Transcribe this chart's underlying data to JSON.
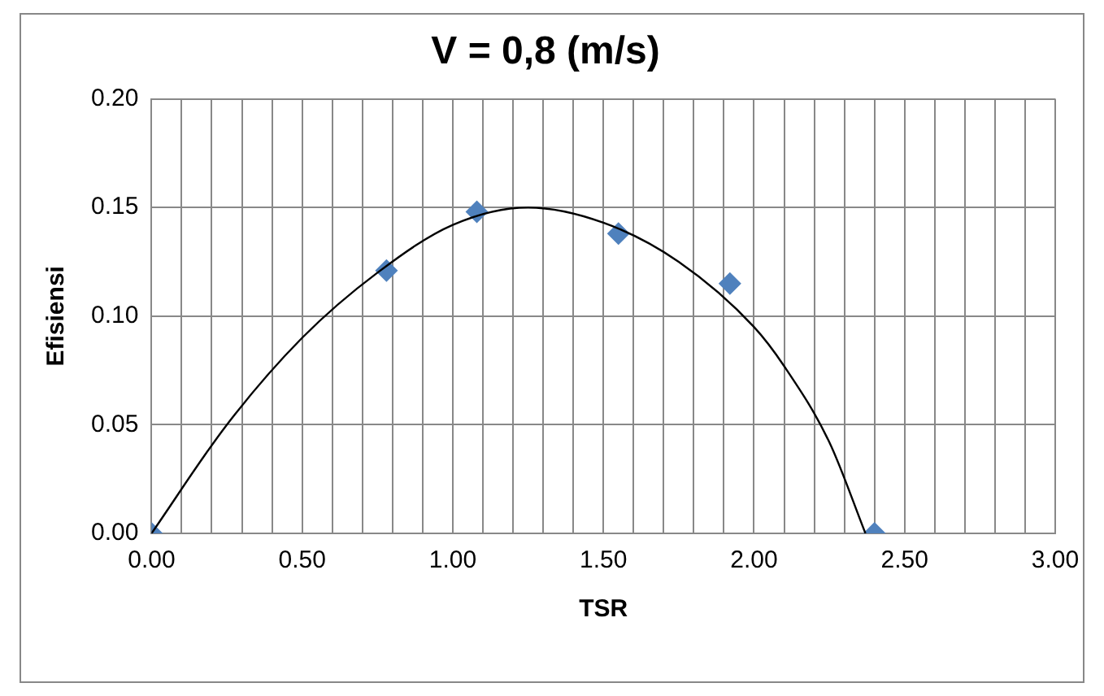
{
  "chart_data": {
    "type": "scatter",
    "title": "V = 0,8 (m/s)",
    "xlabel": "TSR",
    "ylabel": "Efisiensi",
    "series": [
      {
        "color": "#4f81bd",
        "marker": "diamond",
        "x": [
          0,
          0.78,
          1.08,
          1.55,
          1.92,
          2.4
        ],
        "values": [
          0,
          0.121,
          0.148,
          0.138,
          0.115,
          0
        ]
      },
      {
        "type": "line",
        "color": "#000000",
        "marker": "none",
        "x": [
          0,
          0.25,
          0.5,
          0.75,
          1.0,
          1.25,
          1.5,
          1.75,
          2.0,
          2.1,
          2.25,
          2.37
        ],
        "values": [
          0,
          0.05,
          0.09,
          0.12,
          0.142,
          0.15,
          0.143,
          0.125,
          0.095,
          0.077,
          0.042,
          0
        ]
      }
    ],
    "xlim": [
      0,
      3
    ],
    "ylim": [
      0,
      0.2
    ],
    "xticks": [
      {
        "value": 0,
        "label": "0.00"
      },
      {
        "value": 0.1,
        "label": null
      },
      {
        "value": 0.2,
        "label": null
      },
      {
        "value": 0.3,
        "label": null
      },
      {
        "value": 0.4,
        "label": null
      },
      {
        "value": 0.5,
        "label": "0.50"
      },
      {
        "value": 0.6,
        "label": null
      },
      {
        "value": 0.7,
        "label": null
      },
      {
        "value": 0.8,
        "label": null
      },
      {
        "value": 0.9,
        "label": null
      },
      {
        "value": 1,
        "label": "1.00"
      },
      {
        "value": 1.1,
        "label": null
      },
      {
        "value": 1.2,
        "label": null
      },
      {
        "value": 1.3,
        "label": null
      },
      {
        "value": 1.4,
        "label": null
      },
      {
        "value": 1.5,
        "label": "1.50"
      },
      {
        "value": 1.6,
        "label": null
      },
      {
        "value": 1.7,
        "label": null
      },
      {
        "value": 1.8,
        "label": null
      },
      {
        "value": 1.9,
        "label": null
      },
      {
        "value": 2,
        "label": "2.00"
      },
      {
        "value": 2.1,
        "label": null
      },
      {
        "value": 2.2,
        "label": null
      },
      {
        "value": 2.3,
        "label": null
      },
      {
        "value": 2.4,
        "label": null
      },
      {
        "value": 2.5,
        "label": "2.50"
      },
      {
        "value": 2.6,
        "label": null
      },
      {
        "value": 2.7,
        "label": null
      },
      {
        "value": 2.8,
        "label": null
      },
      {
        "value": 2.9,
        "label": null
      },
      {
        "value": 3,
        "label": "3.00"
      }
    ],
    "yticks": [
      {
        "value": 0,
        "label": "0.00"
      },
      {
        "value": 0.05,
        "label": "0.05"
      },
      {
        "value": 0.1,
        "label": "0.10"
      },
      {
        "value": 0.15,
        "label": "0.15"
      },
      {
        "value": 0.2,
        "label": "0.20"
      }
    ],
    "grid": true,
    "legend": false
  }
}
